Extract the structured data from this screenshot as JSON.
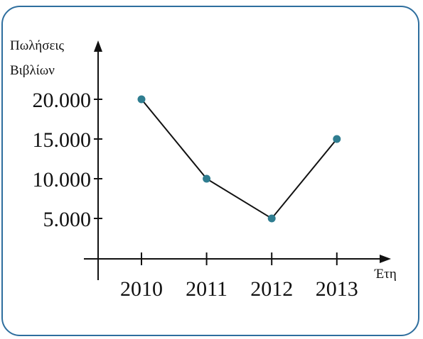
{
  "chart_data": {
    "type": "line",
    "categories": [
      "2010",
      "2011",
      "2012",
      "2013"
    ],
    "series": [
      {
        "values": [
          20000,
          10000,
          5000,
          15000
        ]
      }
    ],
    "y_ticks": [
      5000,
      10000,
      15000,
      20000
    ],
    "y_tick_labels": [
      "5.000",
      "10.000",
      "15.000",
      "20.000"
    ],
    "ylabel_lines": [
      "Πωλήσεις",
      "Βιβλίων"
    ],
    "xlabel": "Έτη",
    "title": "",
    "ylim": [
      0,
      20000
    ],
    "grid": false,
    "colors": {
      "point": "#2f7d90",
      "line": "#111111",
      "frame": "#2e6e9e"
    }
  }
}
